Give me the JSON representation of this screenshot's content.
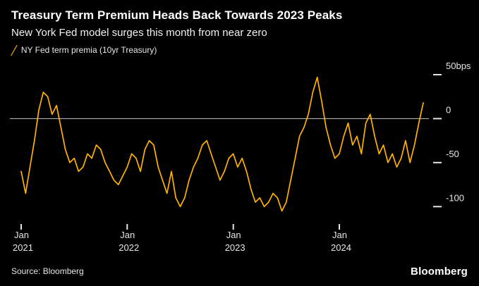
{
  "header": {
    "title": "Treasury Term Premium Heads Back Towards 2023 Peaks",
    "subtitle": "New York Fed model surges this month from near zero"
  },
  "legend": {
    "marker": "╱",
    "label": "NY Fed term premia (10yr Treasury)"
  },
  "source": "Source: Bloomberg",
  "brand": "Bloomberg",
  "colors": {
    "background": "#000000",
    "line": "#FFB300",
    "title_text": "#FFFFFF",
    "subtitle_text": "#F2F2F2",
    "axis_text": "#E6E6E6",
    "zero_line": "#C8C8C8",
    "tick": "#E6E6E6"
  },
  "chart_data": {
    "type": "line",
    "title": "Treasury Term Premium Heads Back Towards 2023 Peaks",
    "subtitle": "New York Fed model surges this month from near zero",
    "xlabel": "",
    "ylabel": "bps",
    "x_start": "2021-01",
    "x_end": "2024-10",
    "points_per_month": 2,
    "ylim": [
      -115,
      58
    ],
    "grid": "zero-line-only",
    "legend_position": "top-left",
    "y_ticks": [
      {
        "value": 50,
        "label": "50bps"
      },
      {
        "value": 0,
        "label": "0"
      },
      {
        "value": -50,
        "label": "-50"
      },
      {
        "value": -100,
        "label": "-100"
      }
    ],
    "x_ticks": [
      {
        "month_index": 0,
        "label": "Jan",
        "year": "2021"
      },
      {
        "month_index": 12,
        "label": "Jan",
        "year": "2022"
      },
      {
        "month_index": 24,
        "label": "Jan",
        "year": "2023"
      },
      {
        "month_index": 36,
        "label": "Jan",
        "year": "2024"
      }
    ],
    "series": [
      {
        "name": "NY Fed term premia (10yr Treasury)",
        "unit": "bps",
        "values": [
          -60,
          -85,
          -55,
          -25,
          10,
          30,
          25,
          5,
          15,
          -10,
          -35,
          -50,
          -45,
          -60,
          -55,
          -40,
          -45,
          -30,
          -35,
          -50,
          -60,
          -70,
          -75,
          -65,
          -55,
          -40,
          -45,
          -60,
          -35,
          -25,
          -30,
          -55,
          -70,
          -85,
          -60,
          -90,
          -100,
          -90,
          -70,
          -55,
          -45,
          -30,
          -25,
          -40,
          -55,
          -70,
          -60,
          -45,
          -40,
          -55,
          -45,
          -60,
          -80,
          -95,
          -90,
          -100,
          -95,
          -85,
          -90,
          -105,
          -95,
          -70,
          -45,
          -20,
          -10,
          5,
          30,
          47,
          20,
          -10,
          -30,
          -45,
          -40,
          -20,
          -5,
          -30,
          -20,
          -40,
          -5,
          5,
          -20,
          -40,
          -30,
          -50,
          -40,
          -55,
          -45,
          -25,
          -50,
          -30,
          -5,
          18
        ]
      }
    ]
  }
}
